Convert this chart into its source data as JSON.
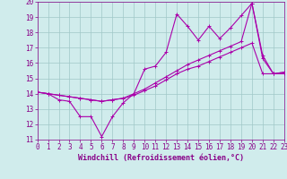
{
  "xlabel": "Windchill (Refroidissement éolien,°C)",
  "xlim": [
    0,
    23
  ],
  "ylim": [
    11,
    20
  ],
  "xticks": [
    0,
    1,
    2,
    3,
    4,
    5,
    6,
    7,
    8,
    9,
    10,
    11,
    12,
    13,
    14,
    15,
    16,
    17,
    18,
    19,
    20,
    21,
    22,
    23
  ],
  "yticks": [
    11,
    12,
    13,
    14,
    15,
    16,
    17,
    18,
    19,
    20
  ],
  "bg_color": "#d0ecec",
  "grid_color": "#a0c8c8",
  "line_color": "#aa00aa",
  "line1_x": [
    0,
    1,
    2,
    3,
    4,
    5,
    6,
    7,
    8,
    9,
    10,
    11,
    12,
    13,
    14,
    15,
    16,
    17,
    18,
    19,
    20,
    21,
    22,
    23
  ],
  "line1_y": [
    14.1,
    14.0,
    13.6,
    13.5,
    12.5,
    12.5,
    11.2,
    12.5,
    13.4,
    14.0,
    15.6,
    15.8,
    16.7,
    19.2,
    18.4,
    17.5,
    18.4,
    17.6,
    18.3,
    19.1,
    19.9,
    16.3,
    15.3,
    15.3
  ],
  "line2_x": [
    0,
    1,
    2,
    3,
    4,
    5,
    6,
    7,
    8,
    9,
    10,
    11,
    12,
    13,
    14,
    15,
    16,
    17,
    18,
    19,
    20,
    21,
    22,
    23
  ],
  "line2_y": [
    14.1,
    14.0,
    13.9,
    13.8,
    13.7,
    13.6,
    13.5,
    13.6,
    13.7,
    13.9,
    14.2,
    14.5,
    14.9,
    15.3,
    15.6,
    15.8,
    16.1,
    16.4,
    16.7,
    17.0,
    17.3,
    15.3,
    15.3,
    15.4
  ],
  "line3_x": [
    0,
    1,
    2,
    3,
    4,
    5,
    6,
    7,
    8,
    9,
    10,
    11,
    12,
    13,
    14,
    15,
    16,
    17,
    18,
    19,
    20,
    21,
    22,
    23
  ],
  "line3_y": [
    14.1,
    14.0,
    13.9,
    13.8,
    13.7,
    13.6,
    13.5,
    13.6,
    13.7,
    14.0,
    14.3,
    14.7,
    15.1,
    15.5,
    15.9,
    16.2,
    16.5,
    16.8,
    17.1,
    17.4,
    19.9,
    16.5,
    15.3,
    15.4
  ],
  "markersize": 3,
  "linewidth": 0.8,
  "tick_fontsize": 5.5,
  "label_fontsize": 6.0
}
